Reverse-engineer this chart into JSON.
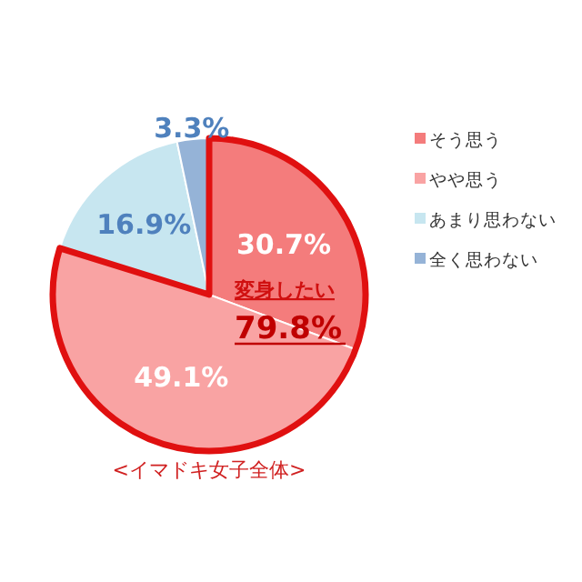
{
  "chart_data": {
    "type": "pie",
    "categories": [
      "そう思う",
      "やや思う",
      "あまり思わない",
      "全く思わない"
    ],
    "values": [
      30.7,
      49.1,
      16.9,
      3.3
    ],
    "colors": [
      "#f47c7c",
      "#f9a3a3",
      "#c7e6f0",
      "#95b3d7"
    ],
    "value_labels": [
      "30.7%",
      "49.1%",
      "16.9%",
      "3.3%"
    ],
    "legend": "right",
    "annotations": [
      "変身したい",
      "79.8%",
      "<イマドキ女子全体>"
    ]
  }
}
